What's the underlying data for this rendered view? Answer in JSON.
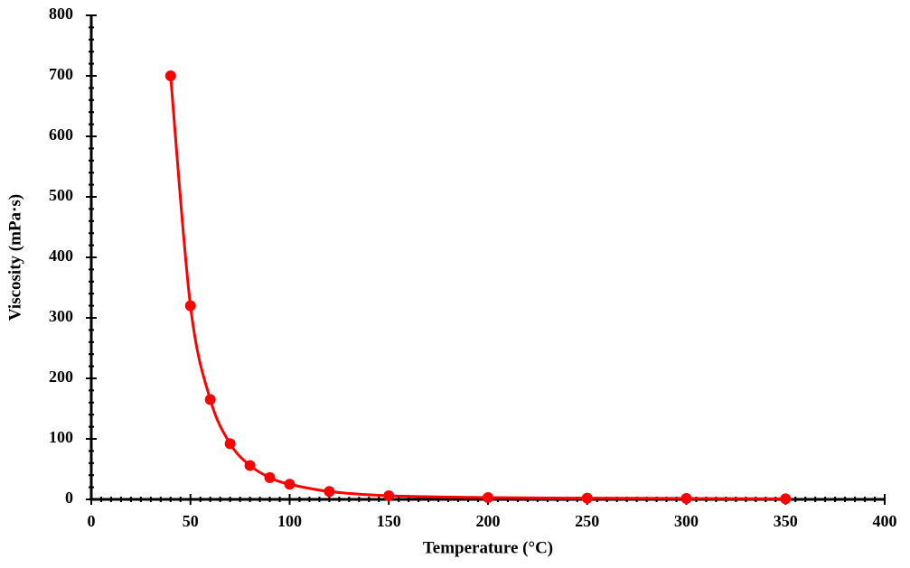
{
  "chart_data": {
    "type": "line",
    "x_label": "Temperature (°C)",
    "y_label": "Viscosity (mPa·s)",
    "x": [
      40,
      50,
      60,
      70,
      80,
      90,
      100,
      120,
      150,
      200,
      250,
      300,
      350
    ],
    "series": [
      {
        "name": "Viscosity",
        "color": "#ff0000",
        "values": [
          700,
          320,
          165,
          92,
          56,
          36,
          25,
          13,
          6,
          3,
          2,
          1.5,
          1
        ]
      }
    ],
    "xlim": [
      0,
      400
    ],
    "xticks": [
      0,
      50,
      100,
      150,
      200,
      250,
      300,
      350,
      400
    ],
    "ylim": [
      0,
      800
    ],
    "yticks": [
      0,
      100,
      200,
      300,
      400,
      500,
      600,
      700,
      800
    ],
    "grid": false
  }
}
